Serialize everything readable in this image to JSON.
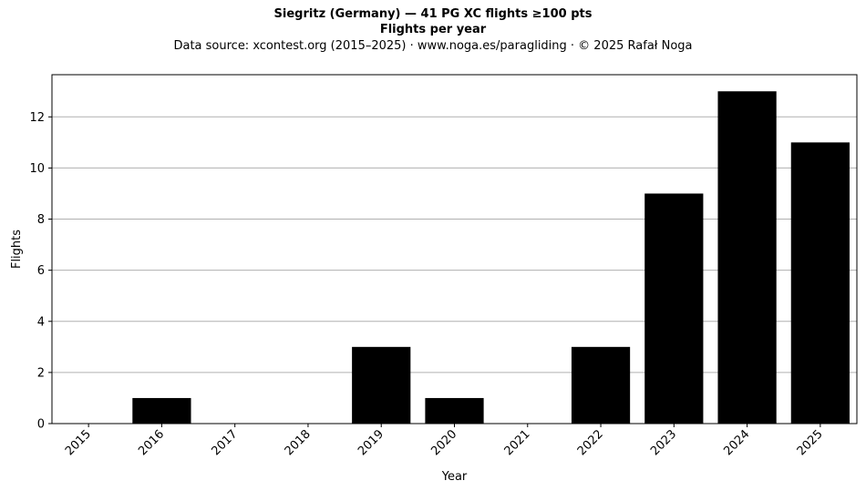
{
  "chart_data": {
    "type": "bar",
    "title": "Siegritz (Germany)  —  41 PG XC flights ≥100 pts",
    "subtitle": "Flights per year",
    "source_note": "Data source: xcontest.org (2015–2025)  ·  www.noga.es/paragliding  ·  © 2025 Rafał Noga",
    "xlabel": "Year",
    "ylabel": "Flights",
    "categories": [
      "2015",
      "2016",
      "2017",
      "2018",
      "2019",
      "2020",
      "2021",
      "2022",
      "2023",
      "2024",
      "2025"
    ],
    "values": [
      0,
      1,
      0,
      0,
      3,
      1,
      0,
      3,
      9,
      13,
      11
    ],
    "ylim": [
      0,
      13.65
    ],
    "yticks": [
      0,
      2,
      4,
      6,
      8,
      10,
      12
    ],
    "grid": "horizontal",
    "bar_color": "#000000",
    "grid_color": "#b0b0b0"
  }
}
